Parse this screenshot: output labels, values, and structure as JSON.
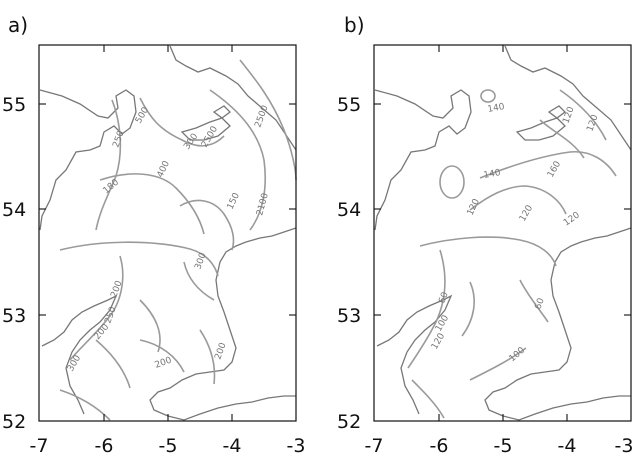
{
  "panels": [
    {
      "label": "a)",
      "contour_labels": [
        "500",
        "250",
        "300",
        "180",
        "2500",
        "400",
        "150",
        "2100",
        "300",
        "2500",
        "200",
        "250",
        "200",
        "300",
        "200",
        "200"
      ]
    },
    {
      "label": "b)",
      "contour_labels": [
        "140",
        "120",
        "120",
        "140",
        "120",
        "120",
        "160",
        "120",
        "60",
        "60",
        "100",
        "120",
        "100"
      ]
    }
  ],
  "axes": {
    "x_ticks": [
      "-7",
      "-6",
      "-5",
      "-4",
      "-3"
    ],
    "y_ticks": [
      "55",
      "54",
      "53",
      "52"
    ]
  }
}
